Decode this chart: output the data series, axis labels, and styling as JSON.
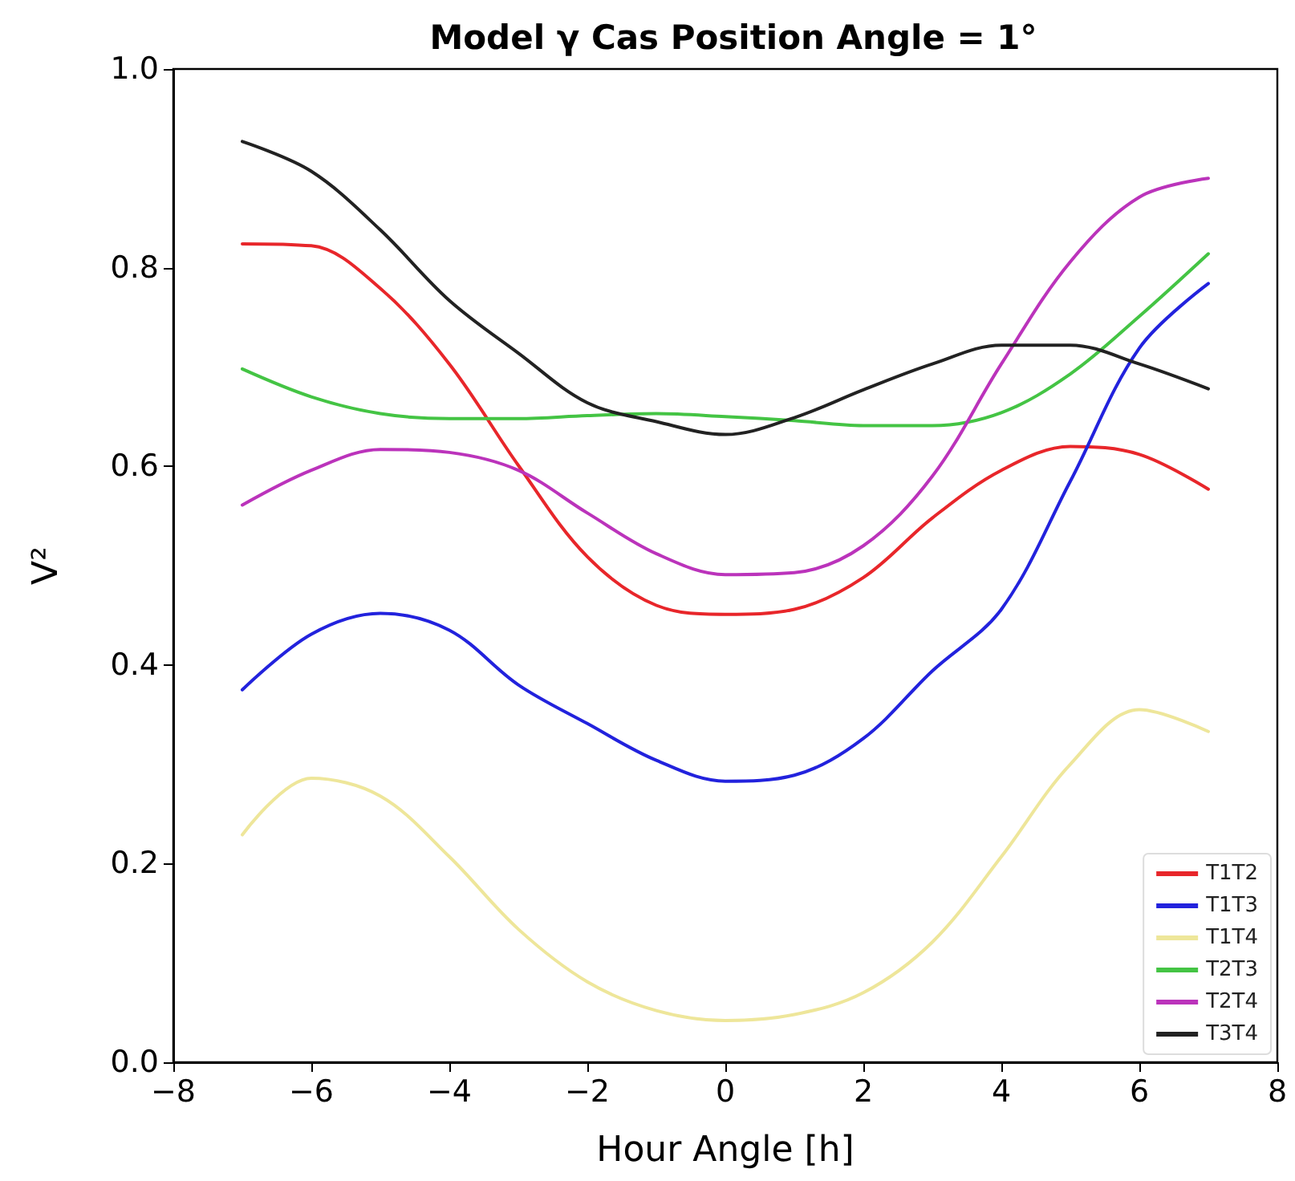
{
  "chart_data": {
    "type": "line",
    "title": "Model γ Cas Position Angle = 1°",
    "xlabel": "Hour Angle [h]",
    "ylabel": "V²",
    "x": [
      -7,
      -6,
      -5,
      -4,
      -3,
      -2,
      -1,
      0,
      1,
      2,
      3,
      4,
      5,
      6,
      7
    ],
    "series": [
      {
        "name": "T1T2",
        "color": "#e8262a",
        "values": [
          0.824,
          0.822,
          0.779,
          0.703,
          0.601,
          0.509,
          0.46,
          0.451,
          0.456,
          0.488,
          0.548,
          0.596,
          0.62,
          0.612,
          0.577
        ]
      },
      {
        "name": "T1T3",
        "color": "#2222dd",
        "values": [
          0.375,
          0.431,
          0.452,
          0.435,
          0.38,
          0.341,
          0.304,
          0.283,
          0.289,
          0.326,
          0.394,
          0.456,
          0.585,
          0.719,
          0.784
        ]
      },
      {
        "name": "T1T4",
        "color": "#eee69a",
        "values": [
          0.229,
          0.286,
          0.268,
          0.207,
          0.134,
          0.081,
          0.052,
          0.042,
          0.048,
          0.07,
          0.121,
          0.207,
          0.3,
          0.355,
          0.333
        ]
      },
      {
        "name": "T2T3",
        "color": "#44c444",
        "values": [
          0.698,
          0.67,
          0.653,
          0.648,
          0.648,
          0.651,
          0.653,
          0.65,
          0.646,
          0.641,
          0.641,
          0.654,
          0.693,
          0.751,
          0.814
        ]
      },
      {
        "name": "T2T4",
        "color": "#bb33bb",
        "values": [
          0.561,
          0.596,
          0.617,
          0.614,
          0.596,
          0.553,
          0.512,
          0.491,
          0.493,
          0.52,
          0.59,
          0.703,
          0.806,
          0.871,
          0.89
        ]
      },
      {
        "name": "T3T4",
        "color": "#222222",
        "values": [
          0.927,
          0.897,
          0.838,
          0.767,
          0.714,
          0.664,
          0.645,
          0.632,
          0.649,
          0.677,
          0.703,
          0.722,
          0.722,
          0.703,
          0.678
        ]
      }
    ],
    "xlim": [
      -8,
      8
    ],
    "xticks": [
      -8,
      -6,
      -4,
      -2,
      0,
      2,
      4,
      6,
      8
    ],
    "ylim": [
      0,
      1
    ],
    "yticks": [
      {
        "value": 0,
        "label": "0.0"
      },
      {
        "value": 0.2,
        "label": "0.2"
      },
      {
        "value": 0.4,
        "label": "0.4"
      },
      {
        "value": 0.6,
        "label": "0.6"
      },
      {
        "value": 0.8,
        "label": "0.8"
      },
      {
        "value": 1,
        "label": "1.0"
      }
    ],
    "grid": false,
    "legend": "bottom right",
    "line_style": "solid",
    "marker": "none"
  }
}
